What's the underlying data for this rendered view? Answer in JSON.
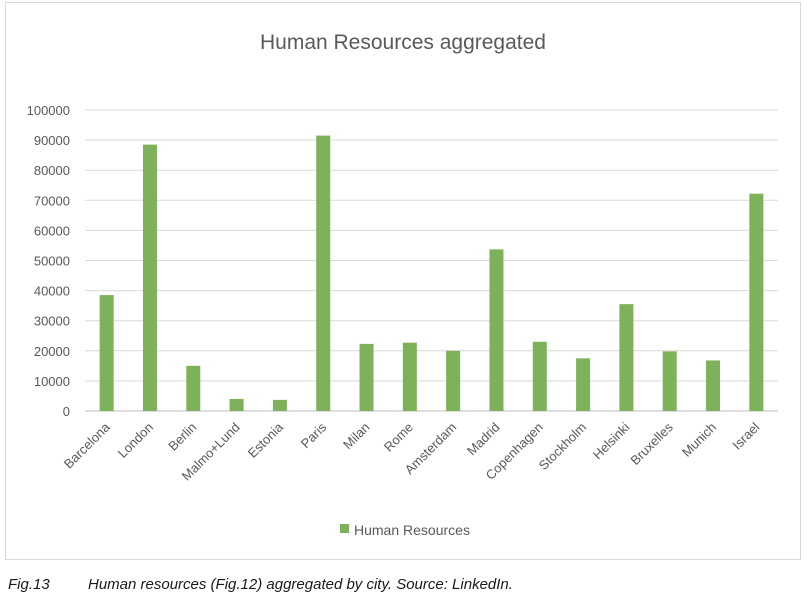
{
  "chart_data": {
    "type": "bar",
    "title": "Human Resources aggregated",
    "categories": [
      "Barcelona",
      "London",
      "Berlin",
      "Malmo+Lund",
      "Estonia",
      "Paris",
      "Milan",
      "Rome",
      "Amsterdam",
      "Madrid",
      "Copenhagen",
      "Stockholm",
      "Helsinki",
      "Bruxelles",
      "Munich",
      "Israel"
    ],
    "series": [
      {
        "name": "Human Resources",
        "color": "#7db25a",
        "values": [
          38500,
          88500,
          15000,
          4000,
          3700,
          91500,
          22300,
          22700,
          20000,
          53700,
          23000,
          17500,
          35500,
          19800,
          16800,
          72200
        ]
      }
    ],
    "ylim": [
      0,
      100000
    ],
    "yticks": [
      0,
      10000,
      20000,
      30000,
      40000,
      50000,
      60000,
      70000,
      80000,
      90000,
      100000
    ],
    "xlabel": "",
    "ylabel": "",
    "grid": true,
    "legend_position": "bottom"
  },
  "caption": {
    "label": "Fig.13",
    "text": "Human resources (Fig.12) aggregated by city. Source: LinkedIn."
  }
}
